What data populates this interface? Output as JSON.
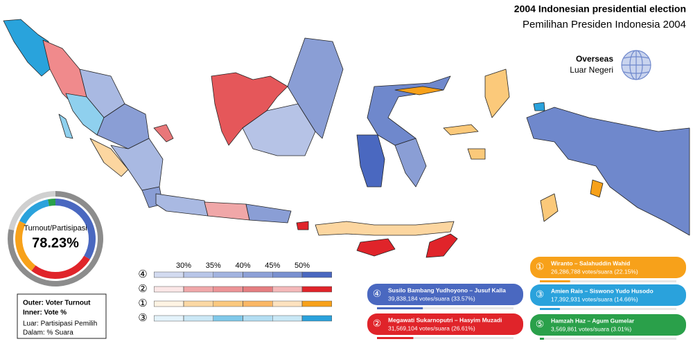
{
  "header": {
    "title": "2004 Indonesian presidential election",
    "subtitle": "Pemilihan Presiden Indonesia 2004"
  },
  "overseas": {
    "title": "Overseas",
    "subtitle": "Luar Negeri"
  },
  "turnout": {
    "label": "Turnout/Partisipasi",
    "value": 78.23,
    "value_label": "78.23%"
  },
  "legend": {
    "lines": [
      "Outer: Voter Turnout",
      "Inner: Vote %",
      "Luar: Partisipasi Pemilih",
      "Dalam: % Suara"
    ]
  },
  "scale": {
    "ticks": [
      {
        "value": 30,
        "label": "30%"
      },
      {
        "value": 35,
        "label": "35%"
      },
      {
        "value": 40,
        "label": "40%"
      },
      {
        "value": 45,
        "label": "45%"
      },
      {
        "value": 50,
        "label": "50%"
      }
    ],
    "rows": [
      {
        "number": "④",
        "colors": [
          "#d3dbf0",
          "#b9c6e8",
          "#a3b4e0",
          "#8ea1d7",
          "#7a91d0",
          "#4a68c0"
        ]
      },
      {
        "number": "②",
        "colors": [
          "#fbe7e7",
          "#f0a8aa",
          "#ec9497",
          "#e57e81",
          "#f4b9ba",
          "#e0242a"
        ]
      },
      {
        "number": "①",
        "colors": [
          "#fef3e3",
          "#fbd8a4",
          "#fbc97f",
          "#fab766",
          "#fde2bf",
          "#f7a11a"
        ]
      },
      {
        "number": "③",
        "colors": [
          "#e4f3fb",
          "#cbe8f6",
          "#80c9ea",
          "#b3def3",
          "#c9e8f6",
          "#2aa2dc"
        ]
      }
    ]
  },
  "candidates": [
    {
      "number": "④",
      "name": "Susilo Bambang Yudhoyono – Jusuf Kalla",
      "votes_text": "39,838,184 votes/suara (33.57%)",
      "percent": 33.57,
      "color": "#4a68c0"
    },
    {
      "number": "②",
      "name": "Megawati Sukarnoputri – Hasyim Muzadi",
      "votes_text": "31,569,104 votes/suara (26.61%)",
      "percent": 26.61,
      "color": "#e0242a"
    },
    {
      "number": "①",
      "name": "Wiranto – Salahuddin Wahid",
      "votes_text": "26,286,788 votes/suara (22.15%)",
      "percent": 22.15,
      "color": "#f7a11a"
    },
    {
      "number": "③",
      "name": "Amien Rais – Siswono Yudo Husodo",
      "votes_text": "17,392,931 votes/suara (14.66%)",
      "percent": 14.66,
      "color": "#2aa2dc"
    },
    {
      "number": "⑤",
      "name": "Hamzah Haz – Agum Gumelar",
      "votes_text": "3,569,861 votes/suara (3.01%)",
      "percent": 3.01,
      "color": "#2aa04a"
    }
  ]
}
